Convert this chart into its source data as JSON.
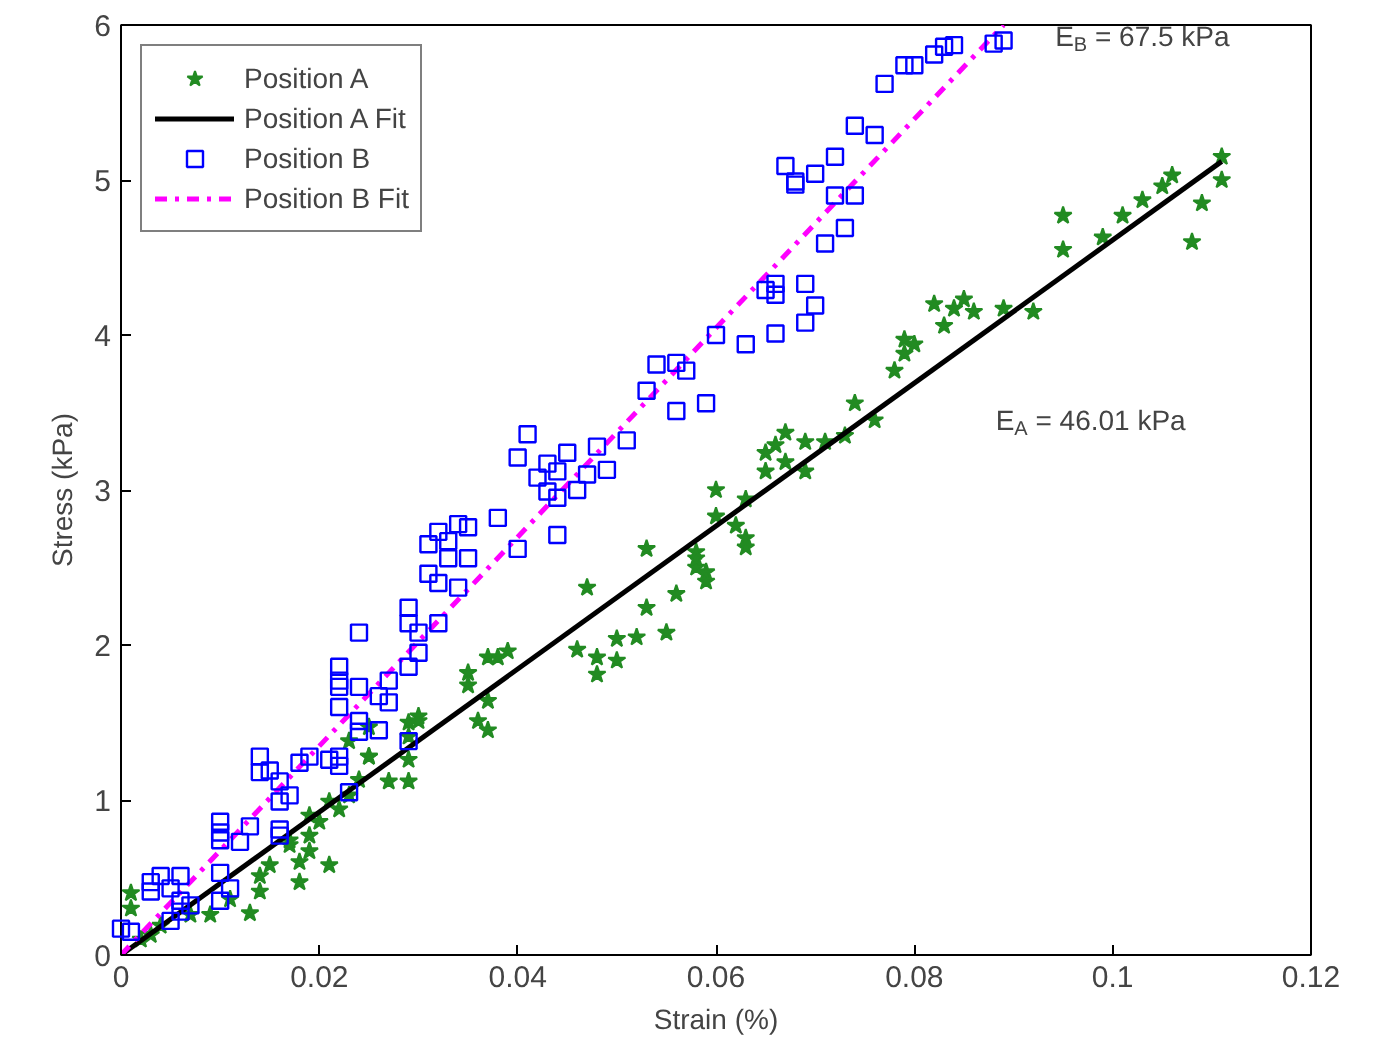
{
  "chart_data": {
    "type": "scatter",
    "xlabel": "Strain (%)",
    "ylabel": "Stress (kPa)",
    "xlim": [
      0,
      0.12
    ],
    "ylim": [
      0,
      6
    ],
    "xticks": [
      0,
      0.02,
      0.04,
      0.06,
      0.08,
      0.1,
      0.12
    ],
    "yticks": [
      0,
      1,
      2,
      3,
      4,
      5,
      6
    ],
    "grid": false,
    "legend": "top left",
    "annotations": [
      "E$_{B}$ = 67.5 kPa",
      "E$_{A}$ = 46.01 kPa"
    ],
    "series": [
      {
        "name": "Position A",
        "marker": "star",
        "color": "#228b22",
        "x": [
          0.111,
          0.111,
          0.109,
          0.108,
          0.106,
          0.105,
          0.103,
          0.101,
          0.099,
          0.095,
          0.095,
          0.092,
          0.089,
          0.086,
          0.085,
          0.084,
          0.082,
          0.083,
          0.08,
          0.079,
          0.079,
          0.078,
          0.076,
          0.074,
          0.073,
          0.071,
          0.069,
          0.067,
          0.066,
          0.065,
          0.067,
          0.065,
          0.069,
          0.06,
          0.063,
          0.06,
          0.062,
          0.063,
          0.063,
          0.058,
          0.058,
          0.059,
          0.059,
          0.056,
          0.053,
          0.058,
          0.053,
          0.052,
          0.05,
          0.055,
          0.047,
          0.046,
          0.048,
          0.05,
          0.048,
          0.039,
          0.038,
          0.037,
          0.035,
          0.035,
          0.037,
          0.036,
          0.037,
          0.03,
          0.029,
          0.029,
          0.025,
          0.029,
          0.03,
          0.029,
          0.025,
          0.023,
          0.025,
          0.027,
          0.024,
          0.023,
          0.021,
          0.019,
          0.022,
          0.02,
          0.019,
          0.017,
          0.019,
          0.021,
          0.018,
          0.015,
          0.017,
          0.014,
          0.018,
          0.014,
          0.011,
          0.009,
          0.013,
          0.007,
          0.004,
          0.003,
          0.001,
          0.001,
          0.002
        ],
        "values": [
          5.15,
          5.0,
          4.85,
          4.6,
          5.03,
          4.96,
          4.87,
          4.77,
          4.63,
          4.77,
          4.55,
          4.15,
          4.17,
          4.15,
          4.23,
          4.17,
          4.2,
          4.06,
          3.94,
          3.97,
          3.88,
          3.77,
          3.45,
          3.56,
          3.35,
          3.31,
          3.31,
          3.37,
          3.29,
          3.24,
          3.18,
          3.12,
          3.12,
          3.0,
          2.94,
          2.83,
          2.77,
          2.69,
          2.63,
          2.6,
          2.5,
          2.47,
          2.41,
          2.33,
          2.62,
          2.56,
          2.24,
          2.05,
          2.04,
          2.08,
          2.37,
          1.97,
          1.92,
          1.9,
          1.81,
          1.96,
          1.92,
          1.92,
          1.82,
          1.74,
          1.64,
          1.51,
          1.45,
          1.54,
          1.5,
          1.26,
          1.28,
          1.12,
          1.51,
          1.41,
          1.47,
          1.38,
          1.28,
          1.12,
          1.13,
          1.03,
          0.99,
          0.9,
          0.94,
          0.86,
          0.77,
          0.74,
          0.67,
          0.58,
          0.6,
          0.58,
          0.71,
          0.51,
          0.47,
          0.41,
          0.36,
          0.26,
          0.27,
          0.26,
          0.19,
          0.13,
          0.3,
          0.4,
          0.1
        ]
      },
      {
        "name": "Position A Fit",
        "type": "line",
        "marker": "none",
        "line_style": "solid",
        "color": "#000000",
        "x": [
          0,
          0.111
        ],
        "values": [
          0,
          5.12
        ]
      },
      {
        "name": "Position B",
        "marker": "square",
        "color": "#0000ff",
        "x": [
          0.0,
          0.001,
          0.003,
          0.003,
          0.004,
          0.005,
          0.006,
          0.006,
          0.007,
          0.006,
          0.005,
          0.01,
          0.011,
          0.01,
          0.01,
          0.01,
          0.01,
          0.013,
          0.012,
          0.014,
          0.014,
          0.015,
          0.016,
          0.016,
          0.017,
          0.016,
          0.016,
          0.018,
          0.019,
          0.021,
          0.022,
          0.022,
          0.023,
          0.022,
          0.022,
          0.022,
          0.024,
          0.022,
          0.024,
          0.024,
          0.026,
          0.026,
          0.027,
          0.027,
          0.024,
          0.029,
          0.029,
          0.03,
          0.032,
          0.029,
          0.029,
          0.03,
          0.031,
          0.032,
          0.034,
          0.035,
          0.033,
          0.033,
          0.035,
          0.031,
          0.032,
          0.034,
          0.038,
          0.04,
          0.04,
          0.041,
          0.042,
          0.043,
          0.044,
          0.045,
          0.043,
          0.044,
          0.046,
          0.047,
          0.049,
          0.048,
          0.051,
          0.044,
          0.053,
          0.054,
          0.056,
          0.057,
          0.06,
          0.063,
          0.056,
          0.059,
          0.066,
          0.069,
          0.07,
          0.065,
          0.066,
          0.066,
          0.069,
          0.071,
          0.073,
          0.072,
          0.074,
          0.067,
          0.068,
          0.068,
          0.07,
          0.072,
          0.074,
          0.076,
          0.077,
          0.079,
          0.08,
          0.082,
          0.083,
          0.084,
          0.088,
          0.089
        ],
        "values": [
          0.17,
          0.15,
          0.47,
          0.41,
          0.51,
          0.43,
          0.51,
          0.35,
          0.32,
          0.28,
          0.22,
          0.35,
          0.43,
          0.53,
          0.86,
          0.79,
          0.74,
          0.83,
          0.73,
          1.28,
          1.18,
          1.19,
          1.12,
          0.99,
          1.03,
          0.81,
          0.77,
          1.24,
          1.28,
          1.26,
          1.22,
          1.28,
          1.05,
          1.86,
          1.77,
          1.73,
          1.73,
          1.6,
          1.51,
          1.44,
          1.45,
          1.67,
          1.63,
          1.77,
          2.08,
          2.24,
          2.14,
          2.08,
          2.14,
          1.38,
          1.86,
          1.95,
          2.65,
          2.73,
          2.78,
          2.76,
          2.67,
          2.56,
          2.56,
          2.46,
          2.4,
          2.37,
          2.82,
          2.62,
          3.21,
          3.36,
          3.08,
          3.17,
          3.12,
          3.24,
          2.99,
          2.95,
          3.0,
          3.1,
          3.13,
          3.28,
          3.32,
          2.71,
          3.64,
          3.81,
          3.82,
          3.77,
          4.0,
          3.94,
          3.51,
          3.56,
          4.01,
          4.08,
          4.19,
          4.29,
          4.26,
          4.33,
          4.33,
          4.59,
          4.69,
          4.9,
          4.9,
          5.09,
          4.97,
          4.99,
          5.04,
          5.15,
          5.35,
          5.29,
          5.62,
          5.74,
          5.74,
          5.81,
          5.86,
          5.87,
          5.88,
          5.9
        ]
      },
      {
        "name": "Position B Fit",
        "type": "line",
        "marker": "none",
        "line_style": "dashdot",
        "color": "#ff00ff",
        "x": [
          0,
          0.089
        ],
        "values": [
          0,
          6.0
        ]
      }
    ]
  }
}
